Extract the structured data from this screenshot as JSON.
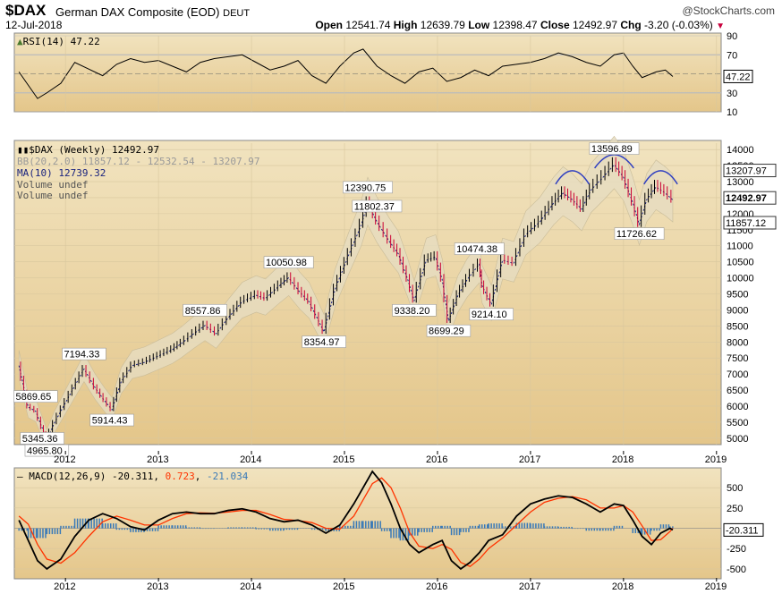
{
  "header": {
    "ticker": "$DAX",
    "name": "German DAX Composite (EOD)",
    "exchange": "DEUT",
    "watermark": "@StockCharts.com",
    "date": "12-Jul-2018",
    "open_label": "Open",
    "open": "12541.74",
    "high_label": "High",
    "high": "12639.79",
    "low_label": "Low",
    "low": "12398.47",
    "close_label": "Close",
    "close": "12492.97",
    "chg_label": "Chg",
    "chg": "-3.20 (-0.03%)"
  },
  "rsi_panel": {
    "legend": "RSI(14) 47.22",
    "levels": [
      "90",
      "70",
      "50",
      "30",
      "10"
    ],
    "current": "47.22",
    "colors": {
      "fill": "#4a7a2e",
      "line": "#000000"
    }
  },
  "price_panel": {
    "legend_main": "$DAX (Weekly) 12492.97",
    "legend_bb": "BB(20,2.0) 11857.12 - 12532.54 - 13207.97",
    "legend_ma": "MA(10) 12739.32",
    "legend_vol1": "Volume undef",
    "legend_vol2": "Volume undef",
    "right_labels": {
      "bb_upper": "13207.97",
      "close": "12492.97",
      "bb_lower": "11857.12"
    },
    "colors": {
      "up": "#000000",
      "down": "#cc0033",
      "ma": "#1a237e",
      "band": "#e8e0c8",
      "arcs": "#3040c0"
    }
  },
  "macd_panel": {
    "legend_prefix": "MACD(12,26,9)",
    "macd": "-20.311",
    "signal": "0.723",
    "hist": "-21.034",
    "current": "-20.311",
    "colors": {
      "macd": "#000000",
      "signal": "#ff3300",
      "hist": "#3a7ab8"
    }
  },
  "x_axis_labels": [
    "2012",
    "2013",
    "2014",
    "2015",
    "2016",
    "2017",
    "2018",
    "2019"
  ],
  "chart_data": [
    {
      "type": "line",
      "title": "RSI(14)",
      "y_ticks": [
        10,
        30,
        50,
        70,
        90
      ],
      "ylim": [
        10,
        90
      ],
      "x": [
        2011.5,
        2011.6,
        2011.7,
        2011.8,
        2011.95,
        2012.1,
        2012.25,
        2012.4,
        2012.55,
        2012.7,
        2012.85,
        2013.0,
        2013.15,
        2013.3,
        2013.45,
        2013.6,
        2013.75,
        2013.9,
        2014.05,
        2014.2,
        2014.35,
        2014.5,
        2014.65,
        2014.8,
        2014.95,
        2015.1,
        2015.2,
        2015.35,
        2015.5,
        2015.65,
        2015.8,
        2015.95,
        2016.1,
        2016.25,
        2016.4,
        2016.55,
        2016.7,
        2016.85,
        2017.0,
        2017.15,
        2017.3,
        2017.45,
        2017.6,
        2017.75,
        2017.9,
        2018.0,
        2018.1,
        2018.2,
        2018.35,
        2018.45,
        2018.53
      ],
      "series": [
        {
          "values": [
            52,
            38,
            24,
            30,
            40,
            62,
            55,
            48,
            60,
            66,
            62,
            64,
            58,
            52,
            62,
            66,
            68,
            70,
            62,
            54,
            58,
            64,
            48,
            40,
            58,
            72,
            76,
            58,
            48,
            40,
            52,
            56,
            42,
            46,
            54,
            48,
            58,
            60,
            62,
            66,
            72,
            68,
            62,
            58,
            70,
            72,
            58,
            46,
            52,
            54,
            47.22
          ]
        }
      ]
    },
    {
      "type": "line",
      "title": "$DAX (Weekly)",
      "y_ticks": [
        5000,
        5500,
        6000,
        6500,
        7000,
        7500,
        8000,
        8500,
        9000,
        9500,
        10000,
        10500,
        11000,
        11500,
        12000,
        12500,
        13000,
        13500,
        14000
      ],
      "ylim": [
        4800,
        14200
      ],
      "x": [
        2011.5,
        2011.6,
        2011.68,
        2011.75,
        2011.8,
        2011.88,
        2012.05,
        2012.2,
        2012.32,
        2012.42,
        2012.5,
        2012.6,
        2012.72,
        2012.85,
        2013.0,
        2013.15,
        2013.25,
        2013.38,
        2013.5,
        2013.62,
        2013.75,
        2013.9,
        2014.05,
        2014.15,
        2014.3,
        2014.4,
        2014.52,
        2014.62,
        2014.78,
        2014.9,
        2015.05,
        2015.18,
        2015.25,
        2015.35,
        2015.48,
        2015.58,
        2015.68,
        2015.75,
        2015.88,
        2015.98,
        2016.05,
        2016.12,
        2016.22,
        2016.32,
        2016.45,
        2016.48,
        2016.58,
        2016.7,
        2016.82,
        2016.95,
        2017.1,
        2017.25,
        2017.35,
        2017.45,
        2017.55,
        2017.65,
        2017.78,
        2017.9,
        2018.0,
        2018.1,
        2018.17,
        2018.25,
        2018.35,
        2018.45,
        2018.53
      ],
      "series": [
        {
          "values": [
            7300,
            6000,
            5869.65,
            5345.36,
            4965.8,
            5500,
            6400,
            7194.33,
            6600,
            6200,
            5914.43,
            6800,
            7300,
            7400,
            7600,
            7800,
            8000,
            8300,
            8557.86,
            8300,
            8800,
            9300,
            9500,
            9400,
            9800,
            10050.98,
            9600,
            9300,
            8354.97,
            9700,
            10800,
            11700,
            12390.75,
            11802.37,
            11200,
            10800,
            10000,
            9338.2,
            10600,
            10700,
            10000,
            8699.29,
            9500,
            10000,
            10474.38,
            9800,
            9214.1,
            10600,
            10500,
            11400,
            11800,
            12400,
            12700,
            12500,
            12200,
            12800,
            13200,
            13596.89,
            13200,
            12400,
            11726.62,
            12500,
            12900,
            12700,
            12492.97
          ]
        }
      ],
      "annotations": [
        "4965.80",
        "5345.36",
        "5869.65",
        "5914.43",
        "7194.33",
        "8557.86",
        "10050.98",
        "8354.97",
        "12390.75",
        "11802.37",
        "9338.20",
        "8699.29",
        "10474.38",
        "9214.10",
        "13596.89",
        "11726.62"
      ]
    },
    {
      "type": "line",
      "title": "MACD(12,26,9)",
      "y_ticks": [
        -500,
        -250,
        0,
        250,
        500
      ],
      "ylim": [
        -600,
        700
      ],
      "x": [
        2011.5,
        2011.6,
        2011.7,
        2011.8,
        2011.95,
        2012.1,
        2012.25,
        2012.4,
        2012.55,
        2012.7,
        2012.85,
        2013.0,
        2013.15,
        2013.3,
        2013.45,
        2013.6,
        2013.75,
        2013.9,
        2014.05,
        2014.2,
        2014.35,
        2014.5,
        2014.65,
        2014.8,
        2014.95,
        2015.1,
        2015.2,
        2015.3,
        2015.4,
        2015.5,
        2015.6,
        2015.7,
        2015.8,
        2015.95,
        2016.05,
        2016.15,
        2016.25,
        2016.35,
        2016.45,
        2016.55,
        2016.7,
        2016.85,
        2017.0,
        2017.15,
        2017.3,
        2017.45,
        2017.6,
        2017.75,
        2017.9,
        2018.0,
        2018.1,
        2018.2,
        2018.3,
        2018.4,
        2018.5,
        2018.53
      ],
      "series": [
        {
          "name": "MACD",
          "values": [
            100,
            -150,
            -400,
            -500,
            -380,
            -100,
            100,
            180,
            120,
            20,
            -20,
            100,
            180,
            200,
            180,
            180,
            220,
            240,
            200,
            120,
            80,
            100,
            40,
            -60,
            40,
            300,
            500,
            700,
            560,
            300,
            0,
            -200,
            -300,
            -200,
            -150,
            -400,
            -500,
            -420,
            -300,
            -150,
            -80,
            150,
            300,
            360,
            400,
            380,
            300,
            200,
            300,
            280,
            100,
            -100,
            -200,
            -60,
            0,
            -20.311
          ]
        },
        {
          "name": "Signal",
          "values": [
            150,
            50,
            -200,
            -380,
            -430,
            -300,
            -100,
            80,
            150,
            100,
            40,
            40,
            120,
            180,
            190,
            185,
            200,
            220,
            220,
            170,
            110,
            95,
            70,
            0,
            -10,
            150,
            350,
            550,
            620,
            500,
            250,
            -50,
            -220,
            -250,
            -200,
            -260,
            -420,
            -470,
            -380,
            -250,
            -120,
            40,
            200,
            320,
            370,
            390,
            350,
            250,
            250,
            280,
            200,
            30,
            -150,
            -140,
            -40,
            0.723
          ]
        }
      ]
    }
  ]
}
